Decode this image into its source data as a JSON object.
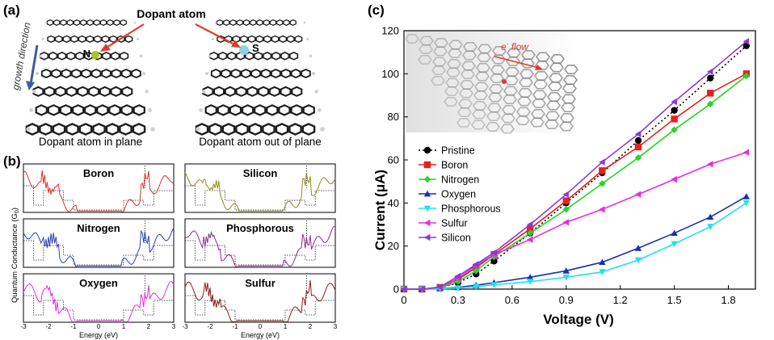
{
  "panels": {
    "a": {
      "label": "(a)",
      "dopant_label": "Dopant atom",
      "growth_label": "growth direction",
      "left_atom": "N",
      "right_atom": "S",
      "left_caption": "Dopant atom in plane",
      "right_caption": "Dopant atom out of plane",
      "colors": {
        "nitrogen_atom": "#a8c81e",
        "sulfur_atom": "#8fd2e6",
        "arrow": "#e23a2a",
        "growth_arrow": "#3f5d97"
      }
    },
    "b": {
      "label": "(b)",
      "ylabel": "Quantum Conductance (G",
      "ylabel_sub": "0",
      "ylabel_close": ")",
      "xlabel": "Energy (eV)",
      "xticks": [
        "-3",
        "-2",
        "-1",
        "0",
        "1",
        "2",
        "3"
      ],
      "subplots": [
        {
          "name": "Boron",
          "color": "#d9342b"
        },
        {
          "name": "Silicon",
          "color": "#8c8c1e"
        },
        {
          "name": "Nitrogen",
          "color": "#2e3fb8"
        },
        {
          "name": "Phosphorous",
          "color": "#8e2a91"
        },
        {
          "name": "Oxygen",
          "color": "#e52be5"
        },
        {
          "name": "Sulfur",
          "color": "#8a1c1c"
        }
      ]
    },
    "c": {
      "label": "(c)",
      "flow_label": "e",
      "flow_sup": "-",
      "flow_word": " flow"
    }
  },
  "chart_data": {
    "type": "line",
    "xlabel": "Voltage (V)",
    "ylabel": "Current (μA)",
    "xlim": [
      0,
      1.95
    ],
    "ylim": [
      0,
      120
    ],
    "xticks": [
      "0",
      "0.3",
      "0.6",
      "0.9",
      "1.2",
      "1.5",
      "1.8"
    ],
    "yticks": [
      "0",
      "20",
      "40",
      "60",
      "80",
      "100",
      "120"
    ],
    "legend_position": "center-left",
    "x": [
      0,
      0.1,
      0.2,
      0.3,
      0.4,
      0.5,
      0.7,
      0.9,
      1.1,
      1.3,
      1.5,
      1.7,
      1.9
    ],
    "series": [
      {
        "name": "Pristine",
        "color": "#000000",
        "marker": "circle",
        "dash": true,
        "values": [
          0,
          0,
          0.5,
          3,
          7,
          13,
          26,
          40,
          54,
          69,
          83,
          98,
          113
        ]
      },
      {
        "name": "Boron",
        "color": "#e8201e",
        "marker": "square",
        "dash": false,
        "values": [
          0,
          0,
          0.8,
          4.5,
          10,
          16,
          28,
          41,
          55,
          66,
          79,
          91,
          100
        ]
      },
      {
        "name": "Nitrogen",
        "color": "#27d427",
        "marker": "diamond",
        "dash": false,
        "values": [
          0,
          0,
          0.5,
          3.5,
          8.5,
          15,
          26,
          37,
          49,
          61,
          74,
          86,
          99
        ]
      },
      {
        "name": "Oxygen",
        "color": "#1a2fb3",
        "marker": "triangle",
        "dash": false,
        "values": [
          0,
          0,
          0.2,
          0.8,
          1.8,
          3,
          5.5,
          8.5,
          12.5,
          19,
          26,
          33.5,
          43
        ]
      },
      {
        "name": "Phosphorous",
        "color": "#22e0f0",
        "marker": "triangle-down",
        "dash": false,
        "values": [
          0,
          0,
          0.1,
          0.5,
          1.2,
          2,
          3.5,
          5.5,
          8,
          13.5,
          21,
          29,
          40
        ]
      },
      {
        "name": "Sulfur",
        "color": "#e42fe3",
        "marker": "triangle-left",
        "dash": false,
        "values": [
          0,
          0,
          0.8,
          5,
          11,
          16,
          23,
          31,
          37,
          44,
          51,
          58,
          63.5
        ]
      },
      {
        "name": " Silicon",
        "color": "#8c3ad6",
        "marker": "triangle-left",
        "dash": false,
        "values": [
          0,
          0,
          1,
          6,
          11.5,
          17,
          30,
          44,
          59,
          72,
          87,
          101,
          115
        ]
      }
    ]
  }
}
